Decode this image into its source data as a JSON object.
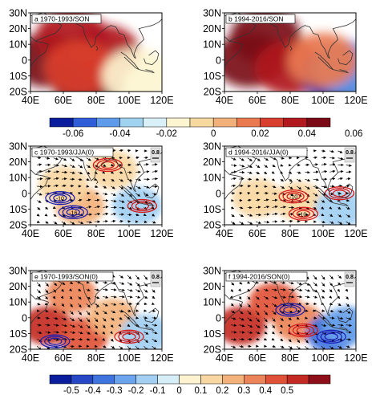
{
  "panels": [
    {
      "id": "a",
      "label": "a  1970-1993/SON",
      "vector_key": ""
    },
    {
      "id": "b",
      "label": "b  1994-2016/SON",
      "vector_key": ""
    },
    {
      "id": "c",
      "label": "c  1970-1993/JJA(0)",
      "vector_key": "0.8"
    },
    {
      "id": "d",
      "label": "d  1994-2016/JJA(0)",
      "vector_key": "0.8"
    },
    {
      "id": "e",
      "label": "e  1970-1993/SON(0)",
      "vector_key": "0.8"
    },
    {
      "id": "f",
      "label": "f  1994-2016/SON(0)",
      "vector_key": "0.8"
    }
  ],
  "axes": {
    "lon_ticks": [
      "40E",
      "60E",
      "80E",
      "100E",
      "120E"
    ],
    "lat_ticks": [
      "30N",
      "20N",
      "10N",
      "0",
      "10S",
      "20S"
    ]
  },
  "contour_labels": {
    "c": [
      "-10",
      "-16"
    ],
    "d": [
      "-10",
      "10"
    ]
  },
  "colorbar_top": {
    "labels": [
      "-0.06",
      "-0.04",
      "-0.02",
      "0",
      "0.02",
      "0.04",
      "0.06"
    ],
    "colors": [
      "#0a1e9e",
      "#2f5ed8",
      "#5e9bea",
      "#9fd3f0",
      "#d9f0f8",
      "#fdf5d0",
      "#f7d9a0",
      "#f1b07a",
      "#e97a50",
      "#d93f2e",
      "#b01a1f",
      "#7a0b16"
    ]
  },
  "colorbar_bottom": {
    "labels": [
      "-0.5",
      "-0.4",
      "-0.3",
      "-0.2",
      "-0.1",
      "0",
      "0.1",
      "0.2",
      "0.3",
      "0.4",
      "0.5"
    ],
    "colors": [
      "#0a1e9e",
      "#2648c7",
      "#3f74df",
      "#6ba3ec",
      "#a2cff2",
      "#d6eef8",
      "#fdf3d0",
      "#f8d7a2",
      "#f3b27c",
      "#eb8458",
      "#df5237",
      "#c42a24",
      "#8e0f19"
    ]
  },
  "chart_data": [
    {
      "panel": "a",
      "type": "heatmap",
      "title": "1970-1993/SON",
      "xlim": [
        40,
        120
      ],
      "ylim": [
        -20,
        30
      ],
      "x_ticks": [
        40,
        60,
        80,
        100,
        120
      ],
      "y_ticks": [
        30,
        20,
        10,
        0,
        -10,
        -20
      ],
      "fields": [
        {
          "lon": 50,
          "lat": 0,
          "value": 0.05
        },
        {
          "lon": 75,
          "lat": -15,
          "value": 0.05
        },
        {
          "lon": 65,
          "lat": 15,
          "value": 0.04
        },
        {
          "lon": 85,
          "lat": 5,
          "value": 0.04
        },
        {
          "lon": 70,
          "lat": -5,
          "value": 0.03
        },
        {
          "lon": 105,
          "lat": -10,
          "value": -0.01
        }
      ]
    },
    {
      "panel": "b",
      "type": "heatmap",
      "title": "1994-2016/SON",
      "xlim": [
        40,
        120
      ],
      "ylim": [
        -20,
        30
      ],
      "x_ticks": [
        40,
        60,
        80,
        100,
        120
      ],
      "y_ticks": [
        30,
        20,
        10,
        0,
        -10,
        -20
      ],
      "fields": [
        {
          "lon": 55,
          "lat": 0,
          "value": 0.07
        },
        {
          "lon": 65,
          "lat": 15,
          "value": 0.05
        },
        {
          "lon": 80,
          "lat": -5,
          "value": 0.04
        },
        {
          "lon": 108,
          "lat": -10,
          "value": -0.06
        },
        {
          "lon": 115,
          "lat": -5,
          "value": -0.04
        },
        {
          "lon": 100,
          "lat": 0,
          "value": 0.02
        }
      ]
    },
    {
      "panel": "c",
      "type": "heatmap",
      "title": "1970-1993/JJA(0)",
      "xlim": [
        40,
        120
      ],
      "ylim": [
        -20,
        30
      ],
      "x_ticks": [
        40,
        60,
        80,
        100,
        120
      ],
      "y_ticks": [
        30,
        20,
        10,
        0,
        -10,
        -20
      ],
      "fields": [
        {
          "lon": 70,
          "lat": -8,
          "value": 0.2
        },
        {
          "lon": 60,
          "lat": 5,
          "value": 0.1
        },
        {
          "lon": 105,
          "lat": -8,
          "value": -0.2
        },
        {
          "lon": 90,
          "lat": 15,
          "value": 0.1
        }
      ],
      "contours": [
        {
          "color": "blue",
          "label": "-10",
          "lon": 58,
          "lat": -3
        },
        {
          "color": "blue",
          "label": "-16",
          "lon": 66,
          "lat": -12
        },
        {
          "color": "red",
          "lon": 87,
          "lat": 18
        },
        {
          "color": "red",
          "lon": 108,
          "lat": -8
        }
      ]
    },
    {
      "panel": "d",
      "type": "heatmap",
      "title": "1994-2016/JJA(0)",
      "xlim": [
        40,
        120
      ],
      "ylim": [
        -20,
        30
      ],
      "x_ticks": [
        40,
        60,
        80,
        100,
        120
      ],
      "y_ticks": [
        30,
        20,
        10,
        0,
        -10,
        -20
      ],
      "fields": [
        {
          "lon": 85,
          "lat": -5,
          "value": 0.1
        },
        {
          "lon": 60,
          "lat": -3,
          "value": 0.1
        },
        {
          "lon": 110,
          "lat": -10,
          "value": -0.2
        }
      ],
      "contours": [
        {
          "color": "red",
          "label": "-10",
          "lon": 82,
          "lat": -2
        },
        {
          "color": "red",
          "label": "10",
          "lon": 88,
          "lat": -13
        },
        {
          "color": "red",
          "lon": 110,
          "lat": 0
        }
      ]
    },
    {
      "panel": "e",
      "type": "heatmap",
      "title": "1970-1993/SON(0)",
      "xlim": [
        40,
        120
      ],
      "ylim": [
        -20,
        30
      ],
      "x_ticks": [
        40,
        60,
        80,
        100,
        120
      ],
      "y_ticks": [
        30,
        20,
        10,
        0,
        -10,
        -20
      ],
      "fields": [
        {
          "lon": 50,
          "lat": -5,
          "value": 0.5
        },
        {
          "lon": 72,
          "lat": -12,
          "value": 0.4
        },
        {
          "lon": 65,
          "lat": 15,
          "value": 0.3
        },
        {
          "lon": 90,
          "lat": 0,
          "value": 0.2
        },
        {
          "lon": 110,
          "lat": -10,
          "value": -0.2
        }
      ],
      "contours": [
        {
          "color": "blue",
          "lon": 55,
          "lat": -15
        },
        {
          "color": "red",
          "lon": 100,
          "lat": -12
        }
      ]
    },
    {
      "panel": "f",
      "type": "heatmap",
      "title": "1994-2016/SON(0)",
      "xlim": [
        40,
        120
      ],
      "ylim": [
        -20,
        30
      ],
      "x_ticks": [
        40,
        60,
        80,
        100,
        120
      ],
      "y_ticks": [
        30,
        20,
        10,
        0,
        -10,
        -20
      ],
      "fields": [
        {
          "lon": 50,
          "lat": -5,
          "value": 0.5
        },
        {
          "lon": 70,
          "lat": 10,
          "value": 0.4
        },
        {
          "lon": 85,
          "lat": -3,
          "value": 0.3
        },
        {
          "lon": 105,
          "lat": -10,
          "value": -0.4
        },
        {
          "lon": 115,
          "lat": -5,
          "value": -0.3
        }
      ],
      "contours": [
        {
          "color": "blue",
          "lon": 80,
          "lat": 5
        },
        {
          "color": "blue",
          "lon": 105,
          "lat": -12
        },
        {
          "color": "red",
          "lon": 88,
          "lat": -8
        }
      ]
    }
  ]
}
